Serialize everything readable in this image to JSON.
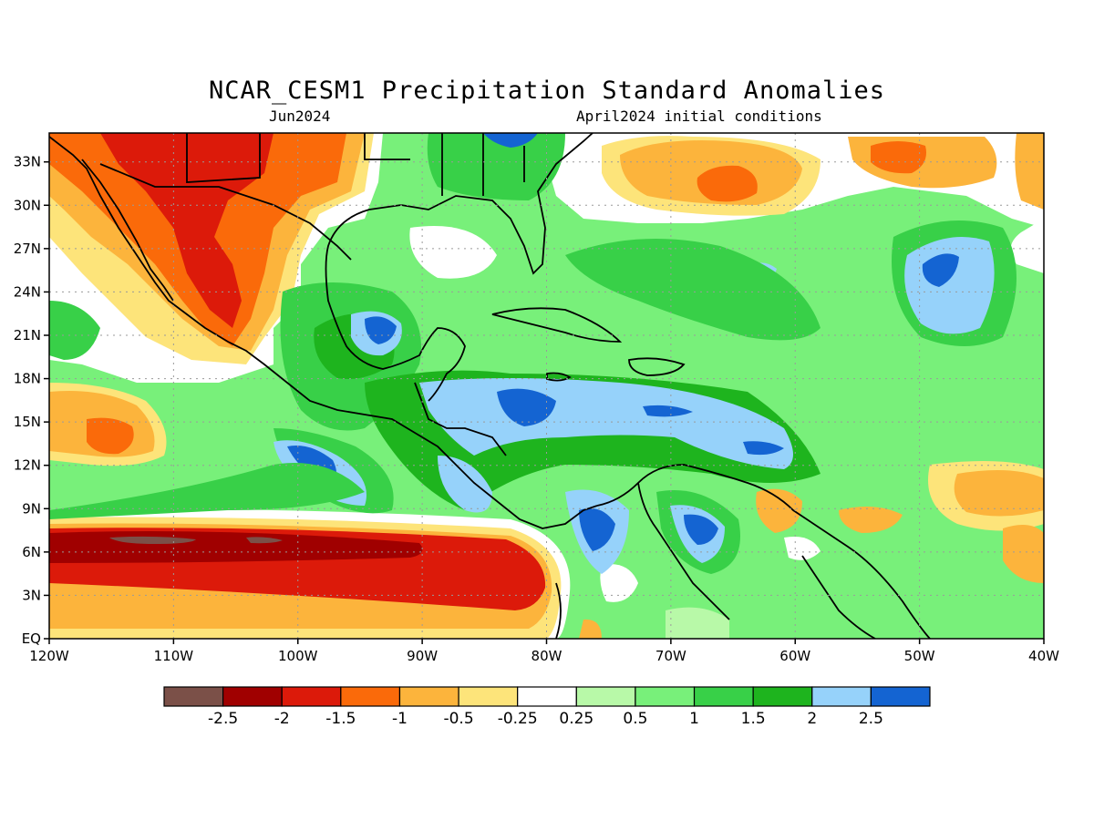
{
  "header": {
    "title": "NCAR_CESM1 Precipitation Standard Anomalies",
    "subtitle_left": "Jun2024",
    "subtitle_right": "April2024 initial conditions"
  },
  "map": {
    "lon_range": [
      -120,
      -40
    ],
    "lat_range": [
      0,
      35
    ],
    "x_ticks": [
      {
        "lon": -120,
        "label": "120W"
      },
      {
        "lon": -110,
        "label": "110W"
      },
      {
        "lon": -100,
        "label": "100W"
      },
      {
        "lon": -90,
        "label": "90W"
      },
      {
        "lon": -80,
        "label": "80W"
      },
      {
        "lon": -70,
        "label": "70W"
      },
      {
        "lon": -60,
        "label": "60W"
      },
      {
        "lon": -50,
        "label": "50W"
      },
      {
        "lon": -40,
        "label": "40W"
      }
    ],
    "y_ticks": [
      {
        "lat": 0,
        "label": "EQ"
      },
      {
        "lat": 3,
        "label": "3N"
      },
      {
        "lat": 6,
        "label": "6N"
      },
      {
        "lat": 9,
        "label": "9N"
      },
      {
        "lat": 12,
        "label": "12N"
      },
      {
        "lat": 15,
        "label": "15N"
      },
      {
        "lat": 18,
        "label": "18N"
      },
      {
        "lat": 21,
        "label": "21N"
      },
      {
        "lat": 24,
        "label": "24N"
      },
      {
        "lat": 27,
        "label": "27N"
      },
      {
        "lat": 30,
        "label": "30N"
      },
      {
        "lat": 33,
        "label": "33N"
      }
    ],
    "grid": true
  },
  "colorbar": {
    "colors": [
      "#7b5048",
      "#a00000",
      "#dc1a0a",
      "#fa6a0a",
      "#fcb43c",
      "#fde47a",
      "#ffffff",
      "#b8f9a8",
      "#78f07a",
      "#38d048",
      "#1eb41e",
      "#96d2fa",
      "#1464d2"
    ],
    "labels": [
      "-2.5",
      "-2",
      "-1.5",
      "-1",
      "-0.5",
      "-0.25",
      "0.25",
      "0.5",
      "1",
      "1.5",
      "2",
      "2.5"
    ]
  },
  "colors": {
    "strong_dry": "#dc1a0a",
    "dry": "#fa6a0a",
    "moderate_dry": "#fcb43c",
    "weak_dry": "#fde47a",
    "neutral": "#ffffff",
    "weak_wet": "#b8f9a8",
    "wet": "#78f07a",
    "moderate_wet": "#38d048",
    "strong_wet": "#1eb41e",
    "very_wet": "#96d2fa",
    "extreme_wet": "#1464d2",
    "extreme_dry": "#a00000",
    "extreme_dry_max": "#7b5048"
  }
}
